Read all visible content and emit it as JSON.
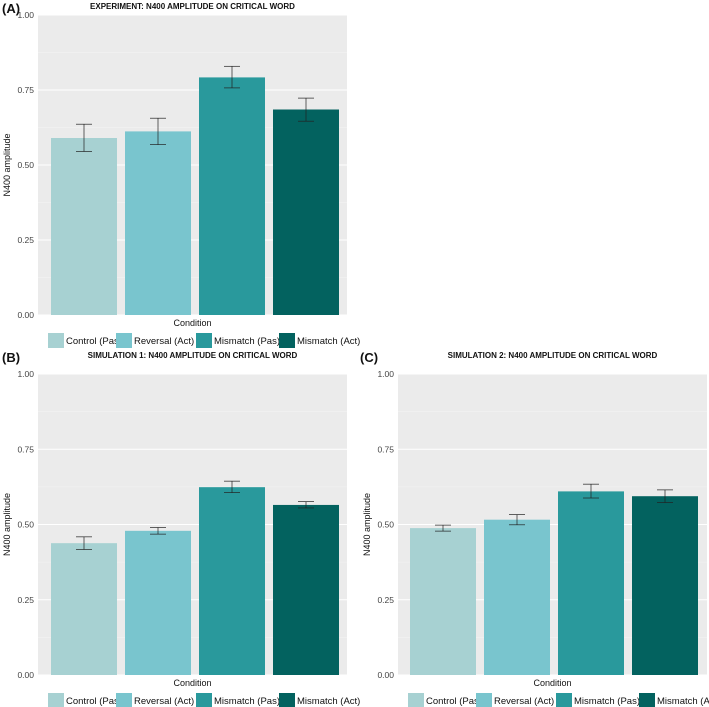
{
  "chart_data": [
    {
      "panel": "(A)",
      "type": "bar",
      "title": "EXPERIMENT: N400 AMPLITUDE ON CRITICAL WORD",
      "xlabel": "Condition",
      "ylabel": "N400 amplitude",
      "ylim": [
        0,
        1
      ],
      "yticks": [
        "0.00",
        "0.25",
        "0.50",
        "0.75",
        "1.00"
      ],
      "categories": [
        "Control (Pas)",
        "Reversal (Act)",
        "Mismatch (Pas)",
        "Mismatch (Act)"
      ],
      "values": [
        0.59,
        0.612,
        0.792,
        0.685
      ],
      "error_low": [
        0.545,
        0.568,
        0.757,
        0.646
      ],
      "error_high": [
        0.636,
        0.656,
        0.829,
        0.723
      ],
      "colors": [
        "#a7d1d2",
        "#79c5ce",
        "#29999c",
        "#03625f"
      ],
      "legend": "bottom",
      "grid": true
    },
    {
      "panel": "(B)",
      "type": "bar",
      "title": "SIMULATION 1: N400 AMPLITUDE ON CRITICAL WORD",
      "xlabel": "Condition",
      "ylabel": "N400 amplitude",
      "ylim": [
        0,
        1
      ],
      "yticks": [
        "0.00",
        "0.25",
        "0.50",
        "0.75",
        "1.00"
      ],
      "categories": [
        "Control (Pas)",
        "Reversal (Act)",
        "Mismatch (Pas)",
        "Mismatch (Act)"
      ],
      "values": [
        0.438,
        0.479,
        0.624,
        0.565
      ],
      "error_low": [
        0.417,
        0.468,
        0.606,
        0.555
      ],
      "error_high": [
        0.459,
        0.49,
        0.644,
        0.576
      ],
      "colors": [
        "#a7d1d2",
        "#79c5ce",
        "#29999c",
        "#03625f"
      ],
      "legend": "bottom",
      "grid": true
    },
    {
      "panel": "(C)",
      "type": "bar",
      "title": "SIMULATION 2: N400 AMPLITUDE ON CRITICAL WORD",
      "xlabel": "Condition",
      "ylabel": "N400 amplitude",
      "ylim": [
        0,
        1
      ],
      "yticks": [
        "0.00",
        "0.25",
        "0.50",
        "0.75",
        "1.00"
      ],
      "categories": [
        "Control (Pas)",
        "Reversal (Act)",
        "Mismatch (Pas)",
        "Mismatch (Act)"
      ],
      "values": [
        0.488,
        0.516,
        0.61,
        0.594
      ],
      "error_low": [
        0.478,
        0.499,
        0.588,
        0.573
      ],
      "error_high": [
        0.498,
        0.533,
        0.634,
        0.615
      ],
      "colors": [
        "#a7d1d2",
        "#79c5ce",
        "#29999c",
        "#03625f"
      ],
      "legend": "bottom",
      "grid": true
    }
  ]
}
